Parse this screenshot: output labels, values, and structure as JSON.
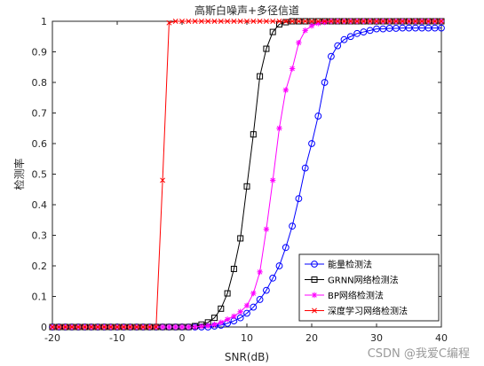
{
  "watermark": "CSDN @我爱C编程",
  "chart_data": {
    "type": "line",
    "title": "高斯白噪声+多径信道",
    "xlabel": "SNR(dB)",
    "ylabel": "检测率",
    "xlim": [
      -20,
      40
    ],
    "ylim": [
      0,
      1
    ],
    "xticks": [
      -20,
      -10,
      0,
      10,
      20,
      30,
      40
    ],
    "yticks": [
      0,
      0.1,
      0.2,
      0.3,
      0.4,
      0.5,
      0.6,
      0.7,
      0.8,
      0.9,
      1
    ],
    "grid": false,
    "legend_position": "bottom-right",
    "x": [
      -20,
      -19,
      -18,
      -17,
      -16,
      -15,
      -14,
      -13,
      -12,
      -11,
      -10,
      -9,
      -8,
      -7,
      -6,
      -5,
      -4,
      -3,
      -2,
      -1,
      0,
      1,
      2,
      3,
      4,
      5,
      6,
      7,
      8,
      9,
      10,
      11,
      12,
      13,
      14,
      15,
      16,
      17,
      18,
      19,
      20,
      21,
      22,
      23,
      24,
      25,
      26,
      27,
      28,
      29,
      30,
      31,
      32,
      33,
      34,
      35,
      36,
      37,
      38,
      39,
      40
    ],
    "series": [
      {
        "name": "能量检测法",
        "color": "#0000ff",
        "marker": "circle",
        "values": [
          0,
          0,
          0,
          0,
          0,
          0,
          0,
          0,
          0,
          0,
          0,
          0,
          0,
          0,
          0,
          0,
          0,
          0,
          0,
          0,
          0,
          0,
          0,
          0,
          0,
          0.003,
          0.006,
          0.012,
          0.02,
          0.03,
          0.045,
          0.065,
          0.09,
          0.12,
          0.16,
          0.2,
          0.26,
          0.33,
          0.42,
          0.52,
          0.6,
          0.69,
          0.8,
          0.885,
          0.92,
          0.94,
          0.95,
          0.96,
          0.965,
          0.97,
          0.975,
          0.975,
          0.977,
          0.977,
          0.978,
          0.978,
          0.978,
          0.978,
          0.978,
          0.978,
          0.978
        ]
      },
      {
        "name": "GRNN网络检测法",
        "color": "#000000",
        "marker": "square",
        "values": [
          0,
          0,
          0,
          0,
          0,
          0,
          0,
          0,
          0,
          0,
          0,
          0,
          0,
          0,
          0,
          0,
          0,
          0,
          0,
          0,
          0,
          0,
          0.003,
          0.008,
          0.015,
          0.03,
          0.06,
          0.11,
          0.19,
          0.29,
          0.46,
          0.63,
          0.82,
          0.91,
          0.965,
          0.99,
          0.997,
          1,
          1,
          1,
          1,
          1,
          1,
          1,
          1,
          1,
          1,
          1,
          1,
          1,
          1,
          1,
          1,
          1,
          1,
          1,
          1,
          1,
          1,
          1,
          1
        ]
      },
      {
        "name": "BP网络检测法",
        "color": "#ff00ff",
        "marker": "star",
        "values": [
          0,
          0,
          0,
          0,
          0,
          0,
          0,
          0,
          0,
          0,
          0,
          0,
          0,
          0,
          0,
          0,
          0,
          0,
          0,
          0,
          0,
          0,
          0,
          0.002,
          0.004,
          0.008,
          0.015,
          0.025,
          0.035,
          0.05,
          0.07,
          0.11,
          0.18,
          0.32,
          0.48,
          0.65,
          0.775,
          0.845,
          0.93,
          0.97,
          0.985,
          0.993,
          0.997,
          1,
          1,
          1,
          1,
          1,
          1,
          1,
          1,
          1,
          1,
          1,
          1,
          1,
          1,
          1,
          1,
          1,
          1
        ]
      },
      {
        "name": "深度学习网络检测法",
        "color": "#ff0000",
        "marker": "x",
        "values": [
          0,
          0,
          0,
          0,
          0,
          0,
          0,
          0,
          0,
          0,
          0,
          0,
          0,
          0,
          0,
          0,
          0,
          0.48,
          0.995,
          1,
          1,
          1,
          1,
          1,
          1,
          1,
          1,
          1,
          1,
          1,
          1,
          1,
          1,
          1,
          1,
          1,
          1,
          1,
          1,
          1,
          1,
          1,
          1,
          1,
          1,
          1,
          1,
          1,
          1,
          1,
          1,
          1,
          1,
          1,
          1,
          1,
          1,
          1,
          1,
          1,
          1
        ]
      }
    ]
  }
}
